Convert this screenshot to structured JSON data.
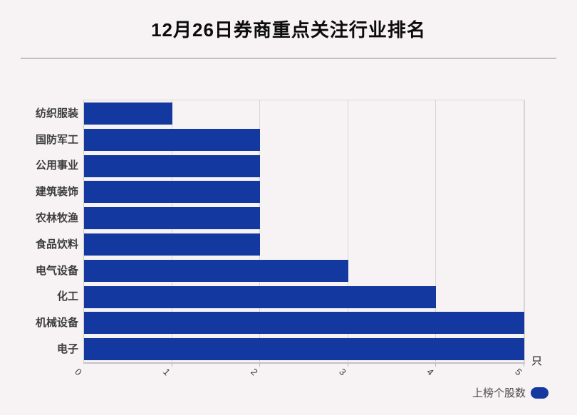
{
  "header": {
    "title": "12月26日券商重点关注行业排名"
  },
  "axis": {
    "unit_label": "只"
  },
  "legend": {
    "label": "上榜个股数"
  },
  "colors": {
    "bar": "#1338a0",
    "background": "#f7f3f4",
    "gridline": "#d9d5d5"
  },
  "chart_data": {
    "type": "bar",
    "orientation": "horizontal",
    "title": "12月26日券商重点关注行业排名",
    "categories": [
      "纺织服装",
      "国防军工",
      "公用事业",
      "建筑装饰",
      "农林牧渔",
      "食品饮料",
      "电气设备",
      "化工",
      "机械设备",
      "电子"
    ],
    "series": [
      {
        "name": "上榜个股数",
        "values": [
          1,
          2,
          2,
          2,
          2,
          2,
          3,
          4,
          5,
          5
        ]
      }
    ],
    "xlabel": "",
    "ylabel": "",
    "x_unit": "只",
    "x_ticks": [
      "0",
      "1",
      "2",
      "3",
      "4",
      "5"
    ],
    "xlim": [
      0,
      5
    ],
    "grid": true,
    "bar_color": "#1338a0",
    "legend_position": "bottom-right"
  }
}
